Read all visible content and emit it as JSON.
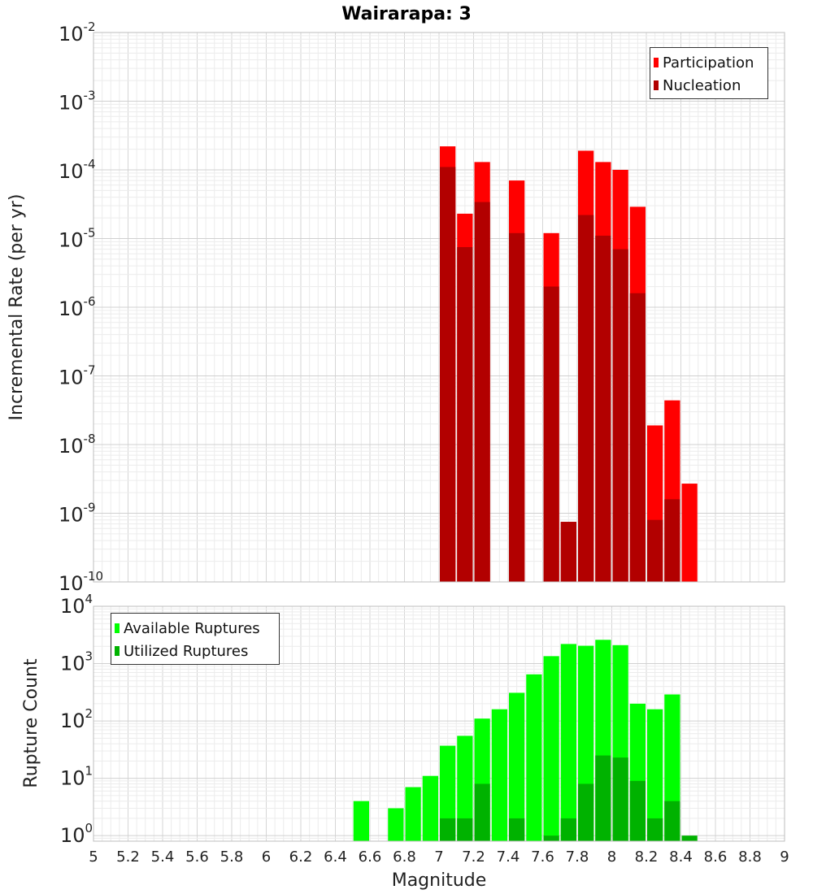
{
  "chart_data": [
    {
      "type": "bar",
      "title": "Wairarapa: 3",
      "xlabel": "",
      "ylabel": "Incremental Rate (per yr)",
      "x_range": [
        5,
        9
      ],
      "y_scale": "log",
      "ylim": [
        1e-10,
        0.01
      ],
      "y_ticks": [
        {
          "base": "10",
          "exp": "-10"
        },
        {
          "base": "10",
          "exp": "-9"
        },
        {
          "base": "10",
          "exp": "-8"
        },
        {
          "base": "10",
          "exp": "-7"
        },
        {
          "base": "10",
          "exp": "-6"
        },
        {
          "base": "10",
          "exp": "-5"
        },
        {
          "base": "10",
          "exp": "-4"
        },
        {
          "base": "10",
          "exp": "-3"
        },
        {
          "base": "10",
          "exp": "-2"
        }
      ],
      "grid": true,
      "legend_position": "top-right",
      "legend": [
        "Participation",
        "Nucleation"
      ],
      "colors": {
        "Participation": "#ff0000",
        "Nucleation": "#b20000"
      },
      "series": [
        {
          "name": "Participation",
          "x": [
            7.05,
            7.15,
            7.25,
            7.45,
            7.65,
            7.75,
            7.85,
            7.95,
            8.05,
            8.15,
            8.25,
            8.35,
            8.45
          ],
          "values": [
            0.00022,
            2.3e-05,
            0.00013,
            7e-05,
            1.2e-05,
            7.5e-10,
            0.00019,
            0.00013,
            0.0001,
            2.9e-05,
            1.9e-08,
            4.4e-08,
            2.7e-09
          ]
        },
        {
          "name": "Nucleation",
          "x": [
            7.05,
            7.15,
            7.25,
            7.45,
            7.65,
            7.75,
            7.85,
            7.95,
            8.05,
            8.15,
            8.25,
            8.35
          ],
          "values": [
            0.00011,
            7.5e-06,
            3.4e-05,
            1.2e-05,
            2e-06,
            7.5e-10,
            2.2e-05,
            1.1e-05,
            7e-06,
            1.6e-06,
            8e-10,
            1.6e-09
          ]
        }
      ]
    },
    {
      "type": "bar",
      "title": "",
      "xlabel": "Magnitude",
      "ylabel": "Rupture Count",
      "x_range": [
        5,
        9
      ],
      "x_ticks": [
        "5",
        "5.2",
        "5.4",
        "5.6",
        "5.8",
        "6",
        "6.2",
        "6.4",
        "6.6",
        "6.8",
        "7",
        "7.2",
        "7.4",
        "7.6",
        "7.8",
        "8",
        "8.2",
        "8.4",
        "8.6",
        "8.8",
        "9"
      ],
      "y_scale": "log",
      "ylim": [
        0.8,
        10000
      ],
      "y_ticks": [
        {
          "base": "10",
          "exp": "0"
        },
        {
          "base": "10",
          "exp": "1"
        },
        {
          "base": "10",
          "exp": "2"
        },
        {
          "base": "10",
          "exp": "3"
        },
        {
          "base": "10",
          "exp": "4"
        }
      ],
      "grid": true,
      "legend_position": "top-left",
      "legend": [
        "Available Ruptures",
        "Utilized Ruptures"
      ],
      "colors": {
        "Available Ruptures": "#00ff00",
        "Utilized Ruptures": "#00b200"
      },
      "series": [
        {
          "name": "Available Ruptures",
          "x": [
            6.55,
            6.75,
            6.85,
            6.95,
            7.05,
            7.15,
            7.25,
            7.35,
            7.45,
            7.55,
            7.65,
            7.75,
            7.85,
            7.95,
            8.05,
            8.15,
            8.25,
            8.35
          ],
          "values": [
            4,
            3,
            7,
            11,
            37,
            55,
            110,
            160,
            310,
            650,
            1350,
            2200,
            2050,
            2600,
            2100,
            200,
            160,
            290
          ]
        },
        {
          "name": "Utilized Ruptures",
          "x": [
            7.05,
            7.15,
            7.25,
            7.45,
            7.65,
            7.75,
            7.85,
            7.95,
            8.05,
            8.15,
            8.25,
            8.35,
            8.45
          ],
          "values": [
            2,
            2,
            8,
            2,
            1,
            2,
            8,
            25,
            23,
            9,
            2,
            4,
            1
          ]
        }
      ]
    }
  ]
}
